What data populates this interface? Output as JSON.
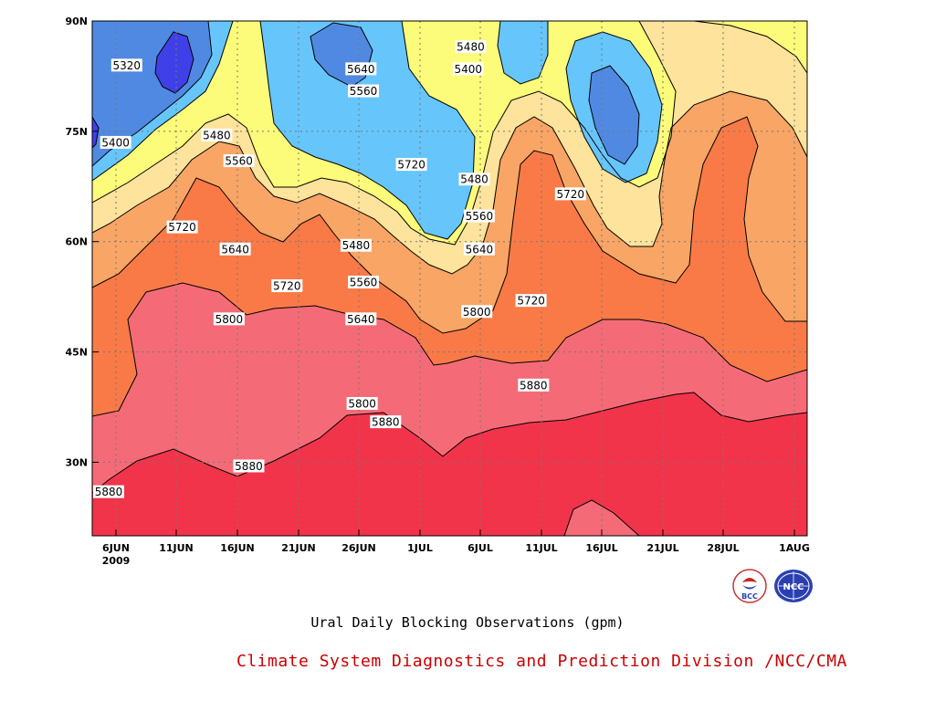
{
  "chart_data": {
    "type": "contour",
    "title": "Ural Daily Blocking Observations (gpm)",
    "credit": "Climate System Diagnostics and Prediction Division /NCC/CMA",
    "x_ticks": [
      "6JUN",
      "11JUN",
      "16JUN",
      "21JUN",
      "26JUN",
      "1JUL",
      "6JUL",
      "11JUL",
      "16JUL",
      "21JUL",
      "28JUL",
      "1AUG"
    ],
    "x_year_label": "2009",
    "y_ticks": [
      "30N",
      "45N",
      "60N",
      "75N",
      "90N"
    ],
    "y_tick_values": [
      30,
      45,
      60,
      75,
      90
    ],
    "ylim": [
      20,
      90
    ],
    "grid": true,
    "contour_levels": [
      5320,
      5400,
      5480,
      5560,
      5640,
      5720,
      5800,
      5880
    ],
    "contour_labels": [
      {
        "text": "5320",
        "date_index": 2.8,
        "lat": 84.0
      },
      {
        "text": "5400",
        "date_index": 1.9,
        "lat": 73.5
      },
      {
        "text": "5480",
        "date_index": 10.1,
        "lat": 74.5
      },
      {
        "text": "5560",
        "date_index": 11.9,
        "lat": 71.0
      },
      {
        "text": "5640",
        "date_index": 11.6,
        "lat": 59.0
      },
      {
        "text": "5720",
        "date_index": 7.3,
        "lat": 62.0
      },
      {
        "text": "5720",
        "date_index": 15.8,
        "lat": 54.0
      },
      {
        "text": "5800",
        "date_index": 11.1,
        "lat": 49.5
      },
      {
        "text": "5880",
        "date_index": 12.7,
        "lat": 29.5
      },
      {
        "text": "5880",
        "date_index": 0.9,
        "lat": 26.0
      },
      {
        "text": "5640",
        "date_index": 21.8,
        "lat": 83.5
      },
      {
        "text": "5560",
        "date_index": 22.0,
        "lat": 80.5
      },
      {
        "text": "5480",
        "date_index": 21.4,
        "lat": 59.5
      },
      {
        "text": "5560",
        "date_index": 22.0,
        "lat": 54.5
      },
      {
        "text": "5640",
        "date_index": 21.8,
        "lat": 49.5
      },
      {
        "text": "5720",
        "date_index": 25.9,
        "lat": 70.5
      },
      {
        "text": "5800",
        "date_index": 21.9,
        "lat": 38.0
      },
      {
        "text": "5880",
        "date_index": 23.8,
        "lat": 35.5
      },
      {
        "text": "5480",
        "date_index": 30.7,
        "lat": 86.5
      },
      {
        "text": "5400",
        "date_index": 30.5,
        "lat": 83.5
      },
      {
        "text": "5480",
        "date_index": 31.0,
        "lat": 68.5
      },
      {
        "text": "5560",
        "date_index": 31.4,
        "lat": 63.5
      },
      {
        "text": "5640",
        "date_index": 31.4,
        "lat": 59.0
      },
      {
        "text": "5800",
        "date_index": 31.2,
        "lat": 50.5
      },
      {
        "text": "5720",
        "date_index": 35.6,
        "lat": 52.0
      },
      {
        "text": "5880",
        "date_index": 35.8,
        "lat": 40.5
      },
      {
        "text": "5720",
        "date_index": 38.8,
        "lat": 66.5
      }
    ]
  },
  "colors": {
    "ge5880": "#f2344a",
    "c5800": "#f46b77",
    "c5720": "#f97a47",
    "c5640": "#f8a565",
    "c5560": "#fde39b",
    "c5480": "#fdfb7a",
    "c5400": "#66c5fb",
    "c5320": "#5089e1",
    "lt5320": "#4040e8"
  },
  "logos": {
    "bcc_text": "BCC",
    "ncc_text": "NCC"
  }
}
